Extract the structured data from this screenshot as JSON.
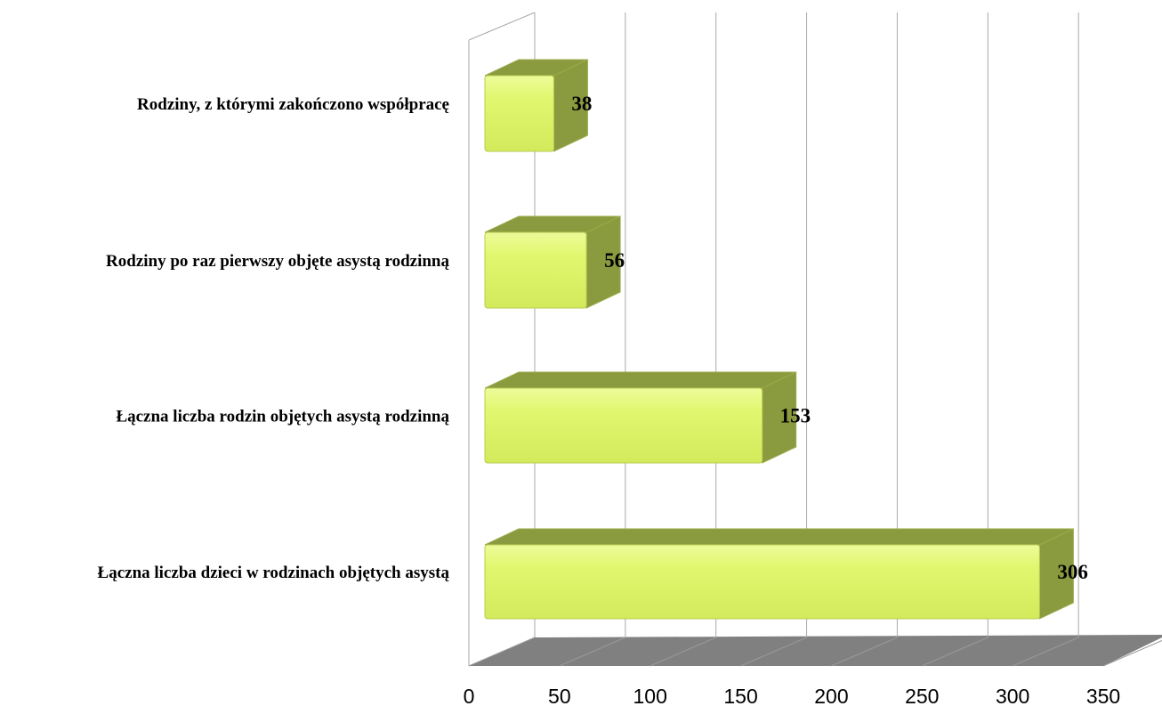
{
  "chart_data": {
    "type": "bar3d-horizontal",
    "categories": [
      "Rodziny, z którymi zakończono współpracę",
      "Rodziny po raz pierwszy objęte asystą rodzinną",
      "Łączna liczba rodzin objętych asystą rodzinną",
      "Łączna liczba dzieci w rodzinach objętych asystą"
    ],
    "values": [
      38,
      56,
      153,
      306
    ],
    "color": "#e1f76f",
    "side_color": "#8a9a3e",
    "xlim": [
      0,
      350
    ],
    "xticks": [
      0,
      50,
      100,
      150,
      200,
      250,
      300,
      350
    ],
    "grid": true
  }
}
